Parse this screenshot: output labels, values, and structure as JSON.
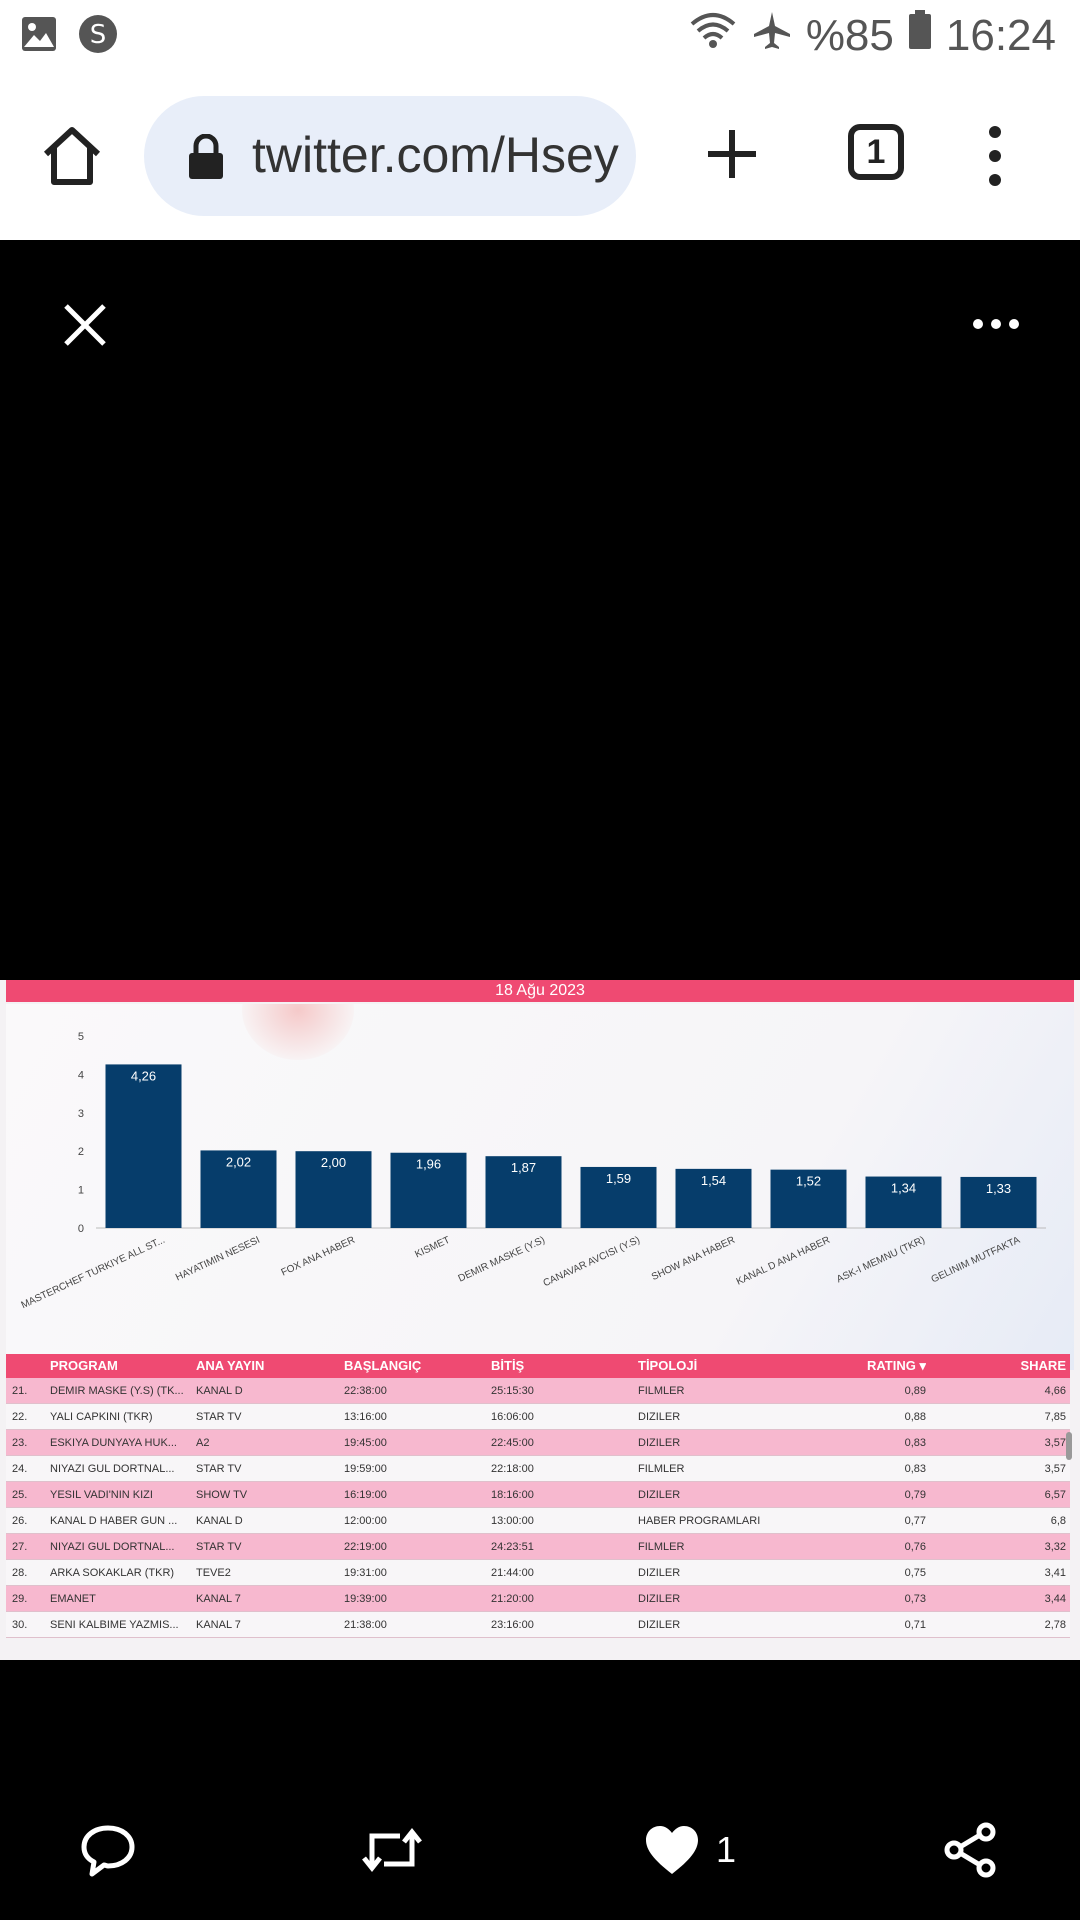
{
  "status_bar": {
    "battery": "%85",
    "time": "16:24"
  },
  "browser": {
    "url": "twitter.com/Hseyinam",
    "tab_count": "1"
  },
  "tweet_image": {
    "date": "18 Ağu 2023",
    "chart_data": {
      "type": "bar",
      "categories": [
        "MASTERCHEF TURKIYE ALL ST...",
        "HAYATIMIN NESESI",
        "FOX ANA HABER",
        "KISMET",
        "DEMIR MASKE (Y.S)",
        "CANAVAR AVCISI (Y.S)",
        "SHOW ANA HABER",
        "KANAL D ANA HABER",
        "ASK-I MEMNU (TKR)",
        "GELINIM MUTFAKTA"
      ],
      "values": [
        4.26,
        2.02,
        2.0,
        1.96,
        1.87,
        1.59,
        1.54,
        1.52,
        1.34,
        1.33
      ],
      "value_labels": [
        "4,26",
        "2,02",
        "2,00",
        "1,96",
        "1,87",
        "1,59",
        "1,54",
        "1,52",
        "1,34",
        "1,33"
      ],
      "ylim": [
        0,
        5
      ],
      "yticks": [
        "0",
        "1",
        "2",
        "3",
        "4",
        "5"
      ],
      "bar_color": "#063d6b"
    },
    "table": {
      "headers": {
        "program": "PROGRAM",
        "ana_yayin": "ANA YAYIN",
        "baslangic": "BAŞLANGIÇ",
        "bitis": "BİTİŞ",
        "tipoloji": "TİPOLOJİ",
        "rating": "RATING ▾",
        "share": "SHARE"
      },
      "rows": [
        {
          "num": "21.",
          "program": "DEMIR MASKE (Y.S) (TK...",
          "ana_yayin": "KANAL D",
          "baslangic": "22:38:00",
          "bitis": "25:15:30",
          "tipoloji": "FILMLER",
          "rating": "0,89",
          "share": "4,66"
        },
        {
          "num": "22.",
          "program": "YALI CAPKINI (TKR)",
          "ana_yayin": "STAR TV",
          "baslangic": "13:16:00",
          "bitis": "16:06:00",
          "tipoloji": "DIZILER",
          "rating": "0,88",
          "share": "7,85"
        },
        {
          "num": "23.",
          "program": "ESKIYA DUNYAYA HUK...",
          "ana_yayin": "A2",
          "baslangic": "19:45:00",
          "bitis": "22:45:00",
          "tipoloji": "DIZILER",
          "rating": "0,83",
          "share": "3,57"
        },
        {
          "num": "24.",
          "program": "NIYAZI GUL DORTNAL...",
          "ana_yayin": "STAR TV",
          "baslangic": "19:59:00",
          "bitis": "22:18:00",
          "tipoloji": "FILMLER",
          "rating": "0,83",
          "share": "3,57"
        },
        {
          "num": "25.",
          "program": "YESIL VADI'NIN KIZI",
          "ana_yayin": "SHOW TV",
          "baslangic": "16:19:00",
          "bitis": "18:16:00",
          "tipoloji": "DIZILER",
          "rating": "0,79",
          "share": "6,57"
        },
        {
          "num": "26.",
          "program": "KANAL D HABER GUN ...",
          "ana_yayin": "KANAL D",
          "baslangic": "12:00:00",
          "bitis": "13:00:00",
          "tipoloji": "HABER PROGRAMLARI",
          "rating": "0,77",
          "share": "6,8"
        },
        {
          "num": "27.",
          "program": "NIYAZI GUL DORTNAL...",
          "ana_yayin": "STAR TV",
          "baslangic": "22:19:00",
          "bitis": "24:23:51",
          "tipoloji": "FILMLER",
          "rating": "0,76",
          "share": "3,32"
        },
        {
          "num": "28.",
          "program": "ARKA SOKAKLAR (TKR)",
          "ana_yayin": "TEVE2",
          "baslangic": "19:31:00",
          "bitis": "21:44:00",
          "tipoloji": "DIZILER",
          "rating": "0,75",
          "share": "3,41"
        },
        {
          "num": "29.",
          "program": "EMANET",
          "ana_yayin": "KANAL 7",
          "baslangic": "19:39:00",
          "bitis": "21:20:00",
          "tipoloji": "DIZILER",
          "rating": "0,73",
          "share": "3,44"
        },
        {
          "num": "30.",
          "program": "SENI KALBIME YAZMIS...",
          "ana_yayin": "KANAL 7",
          "baslangic": "21:38:00",
          "bitis": "23:16:00",
          "tipoloji": "DIZILER",
          "rating": "0,71",
          "share": "2,78"
        }
      ]
    }
  },
  "actions": {
    "like_count": "1"
  },
  "colors": {
    "accent_pink": "#ef4a72",
    "row_pink": "#f7b8cf"
  }
}
